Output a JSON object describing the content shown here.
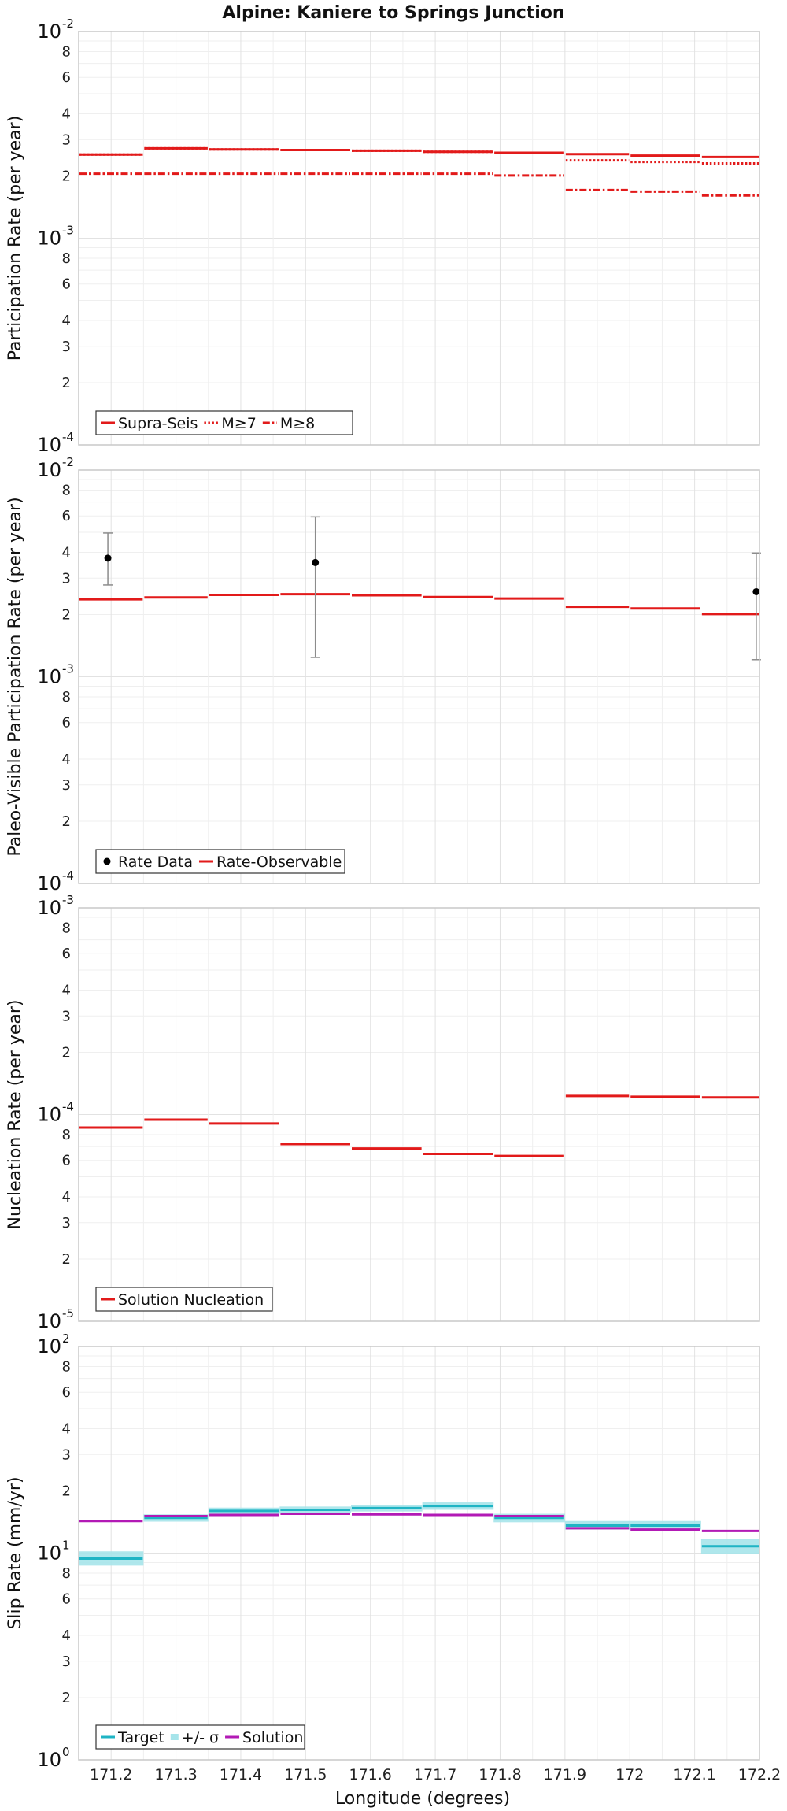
{
  "title": "Alpine: Kaniere to Springs Junction",
  "xlabel": "Longitude (degrees)",
  "x_ticks": [
    "171.2",
    "171.3",
    "171.4",
    "171.5",
    "171.6",
    "171.7",
    "171.8",
    "171.9",
    "172",
    "172.1",
    "172.2"
  ],
  "x_tick_values": [
    171.2,
    171.3,
    171.4,
    171.5,
    171.6,
    171.7,
    171.8,
    171.9,
    172.0,
    172.1,
    172.2
  ],
  "xlim": [
    171.15,
    172.2
  ],
  "colors": {
    "red": "#e21a1a",
    "cyan": "#1fb4c4",
    "cyan_band": "#a6e4ea",
    "purple": "#b21ab5",
    "black": "#000000",
    "errbar": "#8c8c8c"
  },
  "chart_data": [
    {
      "type": "line",
      "step": true,
      "ylabel": "Participation Rate (per year)",
      "yscale": "log",
      "ylim_exp": [
        -4,
        -2
      ],
      "y_major_base": "10",
      "y_major_exps": [
        "-4",
        "-3",
        "-2"
      ],
      "y_minor_labels": [
        "2",
        "3",
        "4",
        "6",
        "8"
      ],
      "legend": [
        {
          "label": "Supra-Seis",
          "style": "solid"
        },
        {
          "label": "M≥7",
          "style": "dotted"
        },
        {
          "label": "M≥8",
          "style": "dashdot"
        }
      ],
      "bins": [
        [
          171.15,
          171.25
        ],
        [
          171.25,
          171.35
        ],
        [
          171.35,
          171.46
        ],
        [
          171.46,
          171.57
        ],
        [
          171.57,
          171.68
        ],
        [
          171.68,
          171.79
        ],
        [
          171.79,
          171.9
        ],
        [
          171.9,
          172.0
        ],
        [
          172.0,
          172.11
        ],
        [
          172.11,
          172.2
        ]
      ],
      "series": [
        {
          "name": "Supra-Seis",
          "style": "solid",
          "color": "#e21a1a",
          "values": [
            0.00254,
            0.00272,
            0.00269,
            0.00267,
            0.00265,
            0.00262,
            0.00259,
            0.00255,
            0.00251,
            0.00247
          ]
        },
        {
          "name": "M≥7",
          "style": "dotted",
          "color": "#e21a1a",
          "values": [
            0.00254,
            0.00272,
            0.00269,
            0.00267,
            0.00265,
            0.00262,
            0.00259,
            0.00238,
            0.00234,
            0.0023
          ]
        },
        {
          "name": "M≥8",
          "style": "dashdot",
          "color": "#e21a1a",
          "values": [
            0.00205,
            0.00205,
            0.00205,
            0.00205,
            0.00205,
            0.00205,
            0.00201,
            0.00171,
            0.00168,
            0.00161
          ]
        }
      ]
    },
    {
      "type": "line",
      "step": true,
      "ylabel": "Paleo-Visible Participation Rate (per year)",
      "yscale": "log",
      "ylim_exp": [
        -4,
        -2
      ],
      "y_major_base": "10",
      "y_major_exps": [
        "-4",
        "-3",
        "-2"
      ],
      "y_minor_labels": [
        "2",
        "3",
        "4",
        "6",
        "8"
      ],
      "legend": [
        {
          "label": "Rate Data",
          "style": "point"
        },
        {
          "label": "Rate-Observable",
          "style": "solid"
        }
      ],
      "bins": [
        [
          171.15,
          171.25
        ],
        [
          171.25,
          171.35
        ],
        [
          171.35,
          171.46
        ],
        [
          171.46,
          171.57
        ],
        [
          171.57,
          171.68
        ],
        [
          171.68,
          171.79
        ],
        [
          171.79,
          171.9
        ],
        [
          171.9,
          172.0
        ],
        [
          172.0,
          172.11
        ],
        [
          172.11,
          172.2
        ]
      ],
      "series": [
        {
          "name": "Rate-Observable",
          "style": "solid",
          "color": "#e21a1a",
          "values": [
            0.00237,
            0.00242,
            0.00249,
            0.00251,
            0.00248,
            0.00243,
            0.00239,
            0.00218,
            0.00214,
            0.00201
          ]
        }
      ],
      "points": [
        {
          "x": 171.195,
          "y": 0.00375,
          "lo": 0.00278,
          "hi": 0.00496
        },
        {
          "x": 171.515,
          "y": 0.00357,
          "lo": 0.00124,
          "hi": 0.00594
        },
        {
          "x": 172.195,
          "y": 0.00258,
          "lo": 0.00121,
          "hi": 0.00397
        }
      ]
    },
    {
      "type": "line",
      "step": true,
      "ylabel": "Nucleation Rate (per year)",
      "yscale": "log",
      "ylim_exp": [
        -5,
        -3
      ],
      "y_major_base": "10",
      "y_major_exps": [
        "-5",
        "-4",
        "-3"
      ],
      "y_minor_labels": [
        "2",
        "3",
        "4",
        "6",
        "8"
      ],
      "legend": [
        {
          "label": "Solution Nucleation",
          "style": "solid"
        }
      ],
      "bins": [
        [
          171.15,
          171.25
        ],
        [
          171.25,
          171.35
        ],
        [
          171.35,
          171.46
        ],
        [
          171.46,
          171.57
        ],
        [
          171.57,
          171.68
        ],
        [
          171.68,
          171.79
        ],
        [
          171.79,
          171.9
        ],
        [
          171.9,
          172.0
        ],
        [
          172.0,
          172.11
        ],
        [
          172.11,
          172.2
        ]
      ],
      "series": [
        {
          "name": "Solution Nucleation",
          "style": "solid",
          "color": "#e21a1a",
          "values": [
            8.65e-05,
            9.45e-05,
            9.05e-05,
            7.2e-05,
            6.85e-05,
            6.45e-05,
            6.3e-05,
            0.000123,
            0.000122,
            0.000121
          ]
        }
      ]
    },
    {
      "type": "line",
      "step": true,
      "ylabel": "Slip Rate (mm/yr)",
      "yscale": "log",
      "ylim_exp": [
        0,
        2
      ],
      "y_major_base": "10",
      "y_major_exps": [
        "0",
        "1",
        "2"
      ],
      "y_minor_labels": [
        "2",
        "3",
        "4",
        "6",
        "8"
      ],
      "legend": [
        {
          "label": "Target",
          "style": "solid"
        },
        {
          "label": "+/- σ",
          "style": "band"
        },
        {
          "label": "Solution",
          "style": "solid"
        }
      ],
      "bins": [
        [
          171.15,
          171.25
        ],
        [
          171.25,
          171.35
        ],
        [
          171.35,
          171.46
        ],
        [
          171.46,
          171.57
        ],
        [
          171.57,
          171.68
        ],
        [
          171.68,
          171.79
        ],
        [
          171.79,
          171.9
        ],
        [
          171.9,
          172.0
        ],
        [
          172.0,
          172.11
        ],
        [
          172.11,
          172.2
        ]
      ],
      "series": [
        {
          "name": "Target",
          "style": "solid",
          "color": "#1fb4c4",
          "values": [
            9.4,
            14.8,
            16.0,
            16.2,
            16.5,
            16.9,
            14.8,
            13.6,
            13.6,
            10.8
          ],
          "band_lo": [
            8.7,
            14.2,
            15.4,
            15.6,
            15.9,
            16.2,
            14.1,
            13.0,
            13.0,
            9.9
          ],
          "band_hi": [
            10.2,
            15.4,
            16.6,
            16.8,
            17.1,
            17.6,
            15.5,
            14.3,
            14.3,
            11.7
          ]
        },
        {
          "name": "Solution",
          "style": "solid",
          "color": "#b21ab5",
          "values": [
            14.3,
            15.1,
            15.3,
            15.5,
            15.4,
            15.3,
            15.1,
            13.2,
            13.0,
            12.8
          ]
        }
      ]
    }
  ]
}
